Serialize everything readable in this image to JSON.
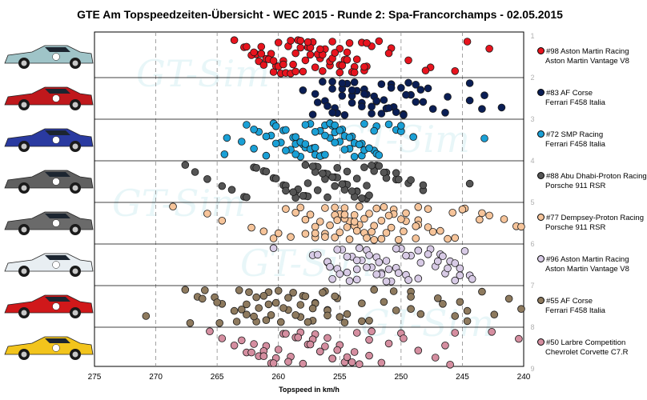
{
  "title": "GTE Am Topspeedzeiten-Übersicht - WEC 2015 - Runde 2:  Spa-Francorchamps - 02.05.2015",
  "chart_data": {
    "type": "scatter",
    "title": "GTE Am Topspeedzeiten-Übersicht - WEC 2015 - Runde 2:  Spa-Francorchamps - 02.05.2015",
    "xlabel": "Topspeed in km/h",
    "xlim": [
      275,
      240
    ],
    "x_ticks": [
      "275",
      "270",
      "265",
      "260",
      "255",
      "250",
      "245",
      "240"
    ],
    "y_ticks": [
      "1",
      "2",
      "3",
      "4",
      "5",
      "6",
      "7",
      "8",
      "9"
    ],
    "grid": "vertical dashed every 5 km/h, horizontal lane separators",
    "series": [
      {
        "name_line1": "#98 Aston Martin Racing",
        "name_line2": "Aston Martin Vantage V8",
        "color": "#e8141e",
        "car_body": "#9fc4c8",
        "speeds": [
          263.6,
          262.8,
          261.8,
          261.6,
          261.2,
          260.4,
          260.0,
          259.2,
          258.6,
          257.8,
          257.0,
          256.4,
          255.6,
          255.0,
          254.4,
          253.6,
          252.8,
          259.8,
          259.0,
          258.2,
          257.4,
          256.6,
          255.8,
          255.0,
          254.2,
          261.4,
          260.6,
          259.6,
          258.8,
          258.0,
          257.2,
          256.2,
          255.4,
          254.6,
          253.8,
          253.0,
          251.8,
          250.8,
          262.2,
          261.0,
          260.2,
          259.4,
          258.4,
          257.6,
          256.8,
          255.8,
          255.0,
          254.0,
          253.2,
          252.4,
          251.0,
          249.4,
          247.6,
          245.6,
          244.6,
          242.8,
          262.0,
          260.8,
          260.0,
          259.0,
          258.2,
          257.4,
          256.4,
          255.6,
          254.8,
          253.8,
          252.8,
          262.6,
          261.4,
          260.4,
          259.6,
          258.6,
          257.6,
          256.6,
          255.4,
          254.4,
          253.0,
          248.0
        ]
      },
      {
        "name_line1": "#83 AF Corse",
        "name_line2": "Ferrari F458 Italia",
        "color": "#0a1e55",
        "car_body": "#c0181c",
        "speeds": [
          255.6,
          254.8,
          254.0,
          253.2,
          252.4,
          251.6,
          250.8,
          250.0,
          249.2,
          248.2,
          247.4,
          246.4,
          244.4,
          258.0,
          257.0,
          256.2,
          255.4,
          254.6,
          253.8,
          253.0,
          252.2,
          251.4,
          250.6,
          249.8,
          248.8,
          247.8,
          243.2,
          256.8,
          256.0,
          255.2,
          254.4,
          253.6,
          252.8,
          252.0,
          251.2,
          250.4,
          249.4,
          248.4,
          246.2,
          244.4,
          241.8,
          257.2,
          256.4,
          255.6,
          254.8,
          254.0,
          253.2,
          252.4,
          251.6,
          250.8,
          249.6,
          248.8,
          243.4,
          255.6,
          254.8,
          254.0,
          253.0,
          252.0,
          251.0,
          249.8
        ]
      },
      {
        "name_line1": "#72 SMP Racing",
        "name_line2": "Ferrari F458 Italia",
        "color": "#1aa0d6",
        "car_body": "#2a3aa0",
        "speeds": [
          260.4,
          259.6,
          258.8,
          258.0,
          257.2,
          256.4,
          255.6,
          254.8,
          254.0,
          253.2,
          252.2,
          264.4,
          262.6,
          261.6,
          260.6,
          259.8,
          259.0,
          258.2,
          257.4,
          256.6,
          255.8,
          255.0,
          254.2,
          253.2,
          252.0,
          250.4,
          249.0,
          258.6,
          257.8,
          257.0,
          256.2,
          255.4,
          254.6,
          253.8,
          253.0,
          252.0,
          251.0,
          250.0,
          243.2,
          258.2,
          257.4,
          256.6,
          255.8,
          255.0,
          254.2,
          253.4,
          252.6,
          251.8,
          250.0,
          262.0,
          261.0,
          260.2,
          259.4,
          258.6,
          257.8,
          257.0,
          256.2,
          255.4,
          254.6,
          253.8,
          253.0,
          252.2,
          264.2,
          263.0,
          262.0,
          261.0,
          260.2,
          259.4,
          258.6,
          257.8,
          257.0,
          256.2,
          255.4
        ]
      },
      {
        "name_line1": "#88 Abu Dhabi-Proton Racing",
        "name_line2": "Porsche 911 RSR",
        "color": "#555555",
        "car_body": "#606060",
        "speeds": [
          267.6,
          266.8,
          265.8,
          264.6,
          263.8,
          262.8,
          262.0,
          261.2,
          260.4,
          259.6,
          258.6,
          257.8,
          257.0,
          256.2,
          255.4,
          254.6,
          253.6,
          252.8,
          252.0,
          251.2,
          250.4,
          249.4,
          248.2,
          262.6,
          261.8,
          261.0,
          260.2,
          259.4,
          258.4,
          257.6,
          256.8,
          256.0,
          255.2,
          254.4,
          253.6,
          252.6,
          251.8,
          250.4,
          249.2,
          244.4,
          259.4,
          258.6,
          257.8,
          257.0,
          256.2,
          255.4,
          254.6,
          253.8,
          253.0,
          252.2,
          251.2,
          248.2,
          258.8,
          258.0,
          257.2,
          256.4,
          255.6,
          254.8,
          254.0,
          253.2,
          252.4,
          251.4,
          250.2,
          257.6,
          256.8,
          256.0,
          255.2,
          254.4,
          253.6,
          252.8
        ]
      },
      {
        "name_line1": "#77 Dempsey-Proton Racing",
        "name_line2": "Porsche 911 RSR",
        "color": "#f6c49a",
        "car_body": "#6a6a6a",
        "speeds": [
          268.6,
          265.8,
          264.6,
          262.2,
          261.2,
          260.4,
          259.4,
          258.6,
          257.8,
          257.0,
          256.2,
          255.4,
          254.6,
          253.8,
          253.0,
          252.2,
          251.2,
          250.2,
          248.6,
          255.0,
          254.2,
          253.4,
          252.4,
          251.6,
          250.6,
          249.6,
          248.6,
          247.8,
          246.8,
          245.6,
          244.8,
          242.8,
          241.6,
          240.6,
          260.0,
          259.0,
          258.2,
          257.4,
          256.6,
          255.8,
          255.0,
          254.2,
          253.4,
          252.6,
          251.6,
          250.8,
          249.8,
          248.8,
          247.8,
          245.8,
          243.6,
          240.2,
          257.8,
          257.0,
          256.2,
          255.4,
          254.6,
          253.8,
          253.0,
          252.2,
          251.4,
          250.6,
          249.6,
          248.6,
          247.4,
          246.2,
          245.0,
          243.4,
          255.2,
          254.4,
          253.6,
          252.8,
          252.0,
          251.0,
          250.0,
          248.8,
          257.0,
          256.2,
          255.4,
          254.6,
          253.8
        ]
      },
      {
        "name_line1": "#96 Aston Martin Racing",
        "name_line2": "Aston Martin Vantage V8",
        "color": "#d8cbe6",
        "car_body": "#e8eef2",
        "speeds": [
          260.4,
          257.2,
          256.0,
          253.6,
          251.6,
          249.4,
          248.6,
          246.8,
          246.0,
          245.2,
          244.4,
          255.6,
          254.8,
          254.0,
          253.2,
          252.4,
          251.6,
          250.8,
          250.0,
          249.2,
          248.4,
          247.2,
          246.4,
          245.6,
          244.8,
          256.8,
          256.0,
          255.2,
          254.4,
          253.6,
          252.8,
          252.0,
          251.2,
          250.4,
          249.6,
          248.6,
          247.6,
          246.6,
          245.6,
          255.8,
          255.0,
          254.2,
          253.4,
          252.6,
          251.8,
          251.0,
          250.2,
          249.4,
          248.6,
          247.8,
          247.0,
          246.2,
          245.2,
          244.2,
          255.2,
          254.4,
          253.6,
          252.8,
          252.0,
          251.2,
          250.4,
          249.6
        ]
      },
      {
        "name_line1": "#55 AF Corse",
        "name_line2": "Ferrari F458 Italia",
        "color": "#8e7a5e",
        "car_body": "#d0181a",
        "speeds": [
          267.6,
          266.6,
          264.6,
          263.6,
          262.6,
          261.8,
          260.8,
          258.0,
          257.0,
          256.0,
          255.0,
          252.6,
          250.6,
          247.0,
          245.2,
          240.2,
          270.8,
          267.2,
          266.0,
          265.2,
          262.6,
          261.6,
          260.6,
          259.8,
          258.8,
          257.8,
          257.0,
          256.0,
          254.4,
          253.2,
          249.2,
          266.2,
          265.0,
          263.0,
          262.0,
          261.0,
          260.0,
          259.2,
          258.2,
          257.2,
          256.0,
          254.6,
          252.2,
          249.2,
          246.6,
          244.6,
          242.4,
          263.4,
          262.4,
          261.2,
          260.2,
          259.2,
          258.2,
          257.2,
          256.2,
          255.2,
          251.4,
          249.2,
          245.6,
          264.8,
          263.2,
          261.8,
          260.8,
          259.6,
          258.6,
          257.6,
          256.4,
          255.4,
          253.2,
          250.4,
          248.4,
          244.6,
          243.4,
          241.2
        ]
      },
      {
        "name_line1": "#50 Larbre Competition",
        "name_line2": "Chevrolet Corvette C7.R",
        "color": "#d58ea0",
        "car_body": "#f2c41c",
        "speeds": [
          265.6,
          264.6,
          263.6,
          262.6,
          261.6,
          260.6,
          259.6,
          258.6,
          257.6,
          256.6,
          255.6,
          254.6,
          253.6,
          252.6,
          251.0,
          248.6,
          247.2,
          246.0,
          242.6,
          240.4,
          261.0,
          260.0,
          259.0,
          258.0,
          257.0,
          256.0,
          255.0,
          253.8,
          252.6,
          251.6,
          250.0,
          263.0,
          262.0,
          261.2,
          260.2,
          259.2,
          258.2,
          257.2,
          256.2,
          255.2,
          254.4,
          253.4,
          252.4,
          249.8,
          246.4,
          262.2,
          261.2,
          260.4,
          259.4,
          258.4,
          257.4,
          256.6,
          255.6,
          254.0,
          245.6
        ]
      }
    ]
  }
}
